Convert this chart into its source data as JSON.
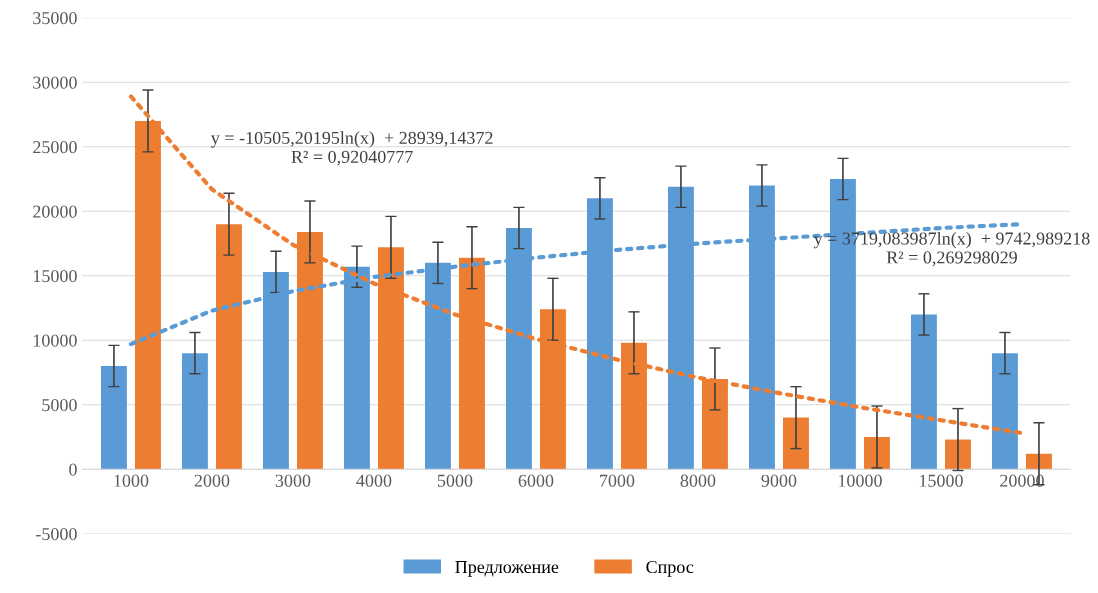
{
  "chart_data": {
    "type": "bar",
    "categories": [
      "1000",
      "2000",
      "3000",
      "4000",
      "5000",
      "6000",
      "7000",
      "8000",
      "9000",
      "10000",
      "15000",
      "20000"
    ],
    "series": [
      {
        "name": "Предложение",
        "color": "#5b9bd5",
        "values": [
          8000,
          9000,
          15300,
          15700,
          16000,
          18700,
          21000,
          21900,
          22000,
          22500,
          12000,
          9000
        ],
        "errors": [
          1600,
          1600,
          1600,
          1600,
          1600,
          1600,
          1600,
          1600,
          1600,
          1600,
          1600,
          1600
        ]
      },
      {
        "name": "Спрос",
        "color": "#ed7d31",
        "values": [
          27000,
          19000,
          18400,
          17200,
          16400,
          12400,
          9800,
          7000,
          4000,
          2500,
          2300,
          1200
        ],
        "errors": [
          2400,
          2400,
          2400,
          2400,
          2400,
          2400,
          2400,
          2400,
          2400,
          2400,
          2400,
          2400
        ]
      },
      {
        "type": "line",
        "line_style": "dotted",
        "color": "#5b9bd5",
        "values": [
          9700,
          12300,
          13800,
          14900,
          15700,
          16400,
          17000,
          17500,
          17900,
          18300,
          18700,
          19000
        ]
      },
      {
        "type": "line",
        "line_style": "dotted",
        "color": "#ed7d31",
        "values": [
          28900,
          21700,
          17400,
          14400,
          12000,
          10100,
          8500,
          7100,
          5900,
          4800,
          3800,
          2800
        ]
      }
    ],
    "ylim": [
      -5000,
      35000
    ],
    "yticks": [
      -5000,
      0,
      5000,
      10000,
      15000,
      20000,
      25000,
      30000,
      35000
    ],
    "grid": "y",
    "legend": "bottom",
    "annotations": [
      "y = -10505,20195ln(x)  + 28939,14372\nR² = 0,92040777",
      "y = 3719,083987ln(x)  + 9742,989218\nR² = 0,269298029"
    ]
  }
}
